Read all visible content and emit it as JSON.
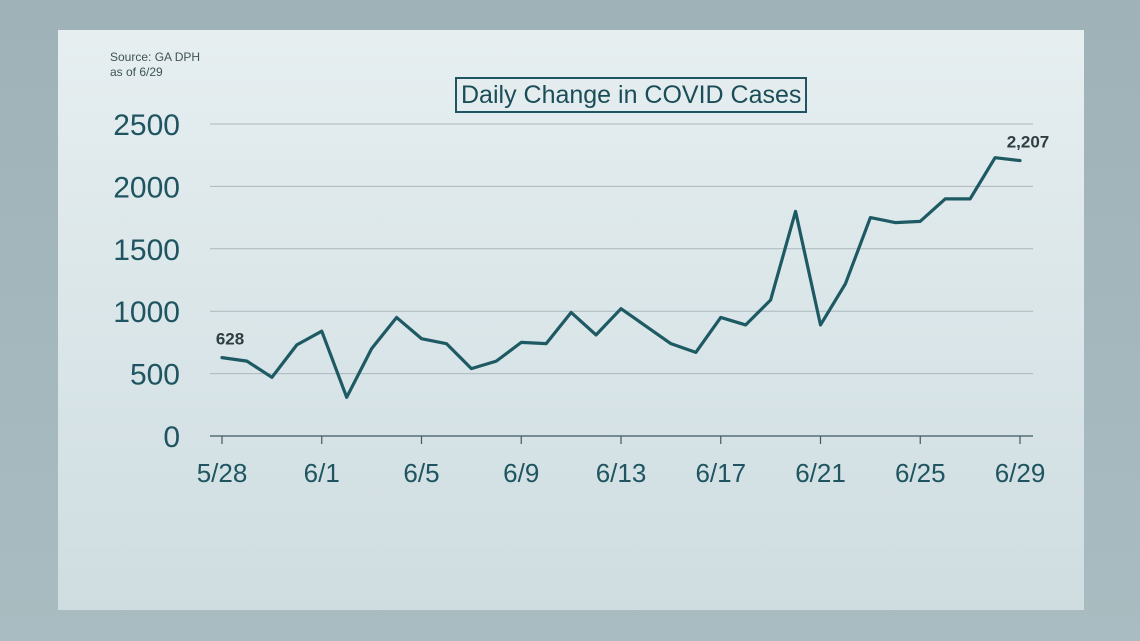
{
  "source": {
    "line1": "Source: GA DPH",
    "line2": "as of 6/29"
  },
  "chart_data": {
    "type": "line",
    "title": "Daily Change in COVID Cases",
    "xlabel": "",
    "ylabel": "",
    "ylim": [
      0,
      2500
    ],
    "yticks": [
      "0",
      "500",
      "1000",
      "1500",
      "2000",
      "2500"
    ],
    "xticks": [
      "5/28",
      "6/1",
      "6/5",
      "6/9",
      "6/13",
      "6/17",
      "6/21",
      "6/25",
      "6/29"
    ],
    "grid": "horizontal",
    "x": [
      "5/28",
      "5/29",
      "5/30",
      "5/31",
      "6/1",
      "6/2",
      "6/3",
      "6/4",
      "6/5",
      "6/6",
      "6/7",
      "6/8",
      "6/9",
      "6/10",
      "6/11",
      "6/12",
      "6/13",
      "6/14",
      "6/15",
      "6/16",
      "6/17",
      "6/18",
      "6/19",
      "6/20",
      "6/21",
      "6/22",
      "6/23",
      "6/24",
      "6/25",
      "6/26",
      "6/27",
      "6/28",
      "6/29"
    ],
    "series": [
      {
        "values": [
          628,
          600,
          470,
          730,
          840,
          310,
          700,
          950,
          780,
          740,
          540,
          600,
          750,
          740,
          990,
          810,
          1020,
          880,
          740,
          670,
          950,
          890,
          1090,
          1800,
          890,
          1220,
          1750,
          1710,
          1720,
          1900,
          1900,
          2230,
          2207
        ]
      }
    ],
    "annotations": [
      {
        "index": 0,
        "text": "628"
      },
      {
        "index": 32,
        "text": "2,207"
      }
    ],
    "line_color": "#1e5a63",
    "grid_color": "#aab8bc"
  }
}
